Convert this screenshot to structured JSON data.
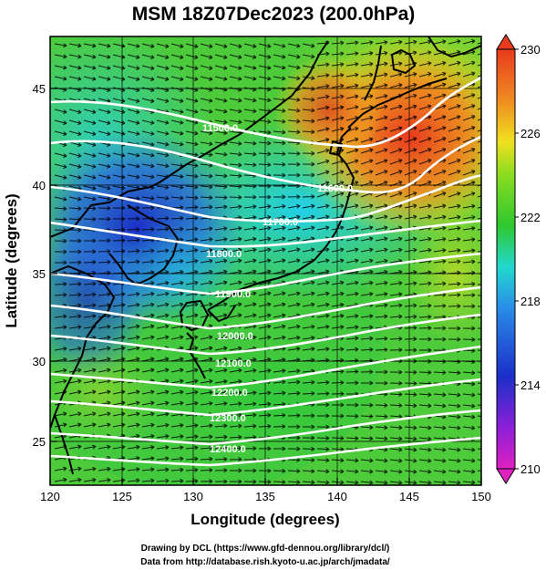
{
  "title": "MSM 18Z07Dec2023 (200.0hPa)",
  "xlabel": "Longitude (degrees)",
  "ylabel": "Latitude  (degrees)",
  "x_ticks": [
    "120",
    "125",
    "130",
    "135",
    "140",
    "145",
    "150"
  ],
  "y_ticks": [
    "45",
    "40",
    "35",
    "30",
    "25"
  ],
  "colorbar": {
    "labels": [
      "230",
      "226",
      "222",
      "218",
      "214",
      "210"
    ],
    "min": 210,
    "max": 230
  },
  "contour_labels": [
    "11500.0",
    "11600.0",
    "11700.0",
    "11800.0",
    "11900.0",
    "12000.0",
    "12100.0",
    "12200.0",
    "12300.0",
    "12400.0"
  ],
  "footer": {
    "line1": "Drawing by DCL (https://www.gfd-dennou.org/library/dcl/)",
    "line2": "Data from http://database.rish.kyoto-u.ac.jp/arch/jmadata/"
  },
  "colors": {
    "cold": "#1a2fc8",
    "cool": "#22c8e0",
    "mid": "#2ec82e",
    "warm": "#f0d020",
    "hot": "#e83a1e"
  }
}
